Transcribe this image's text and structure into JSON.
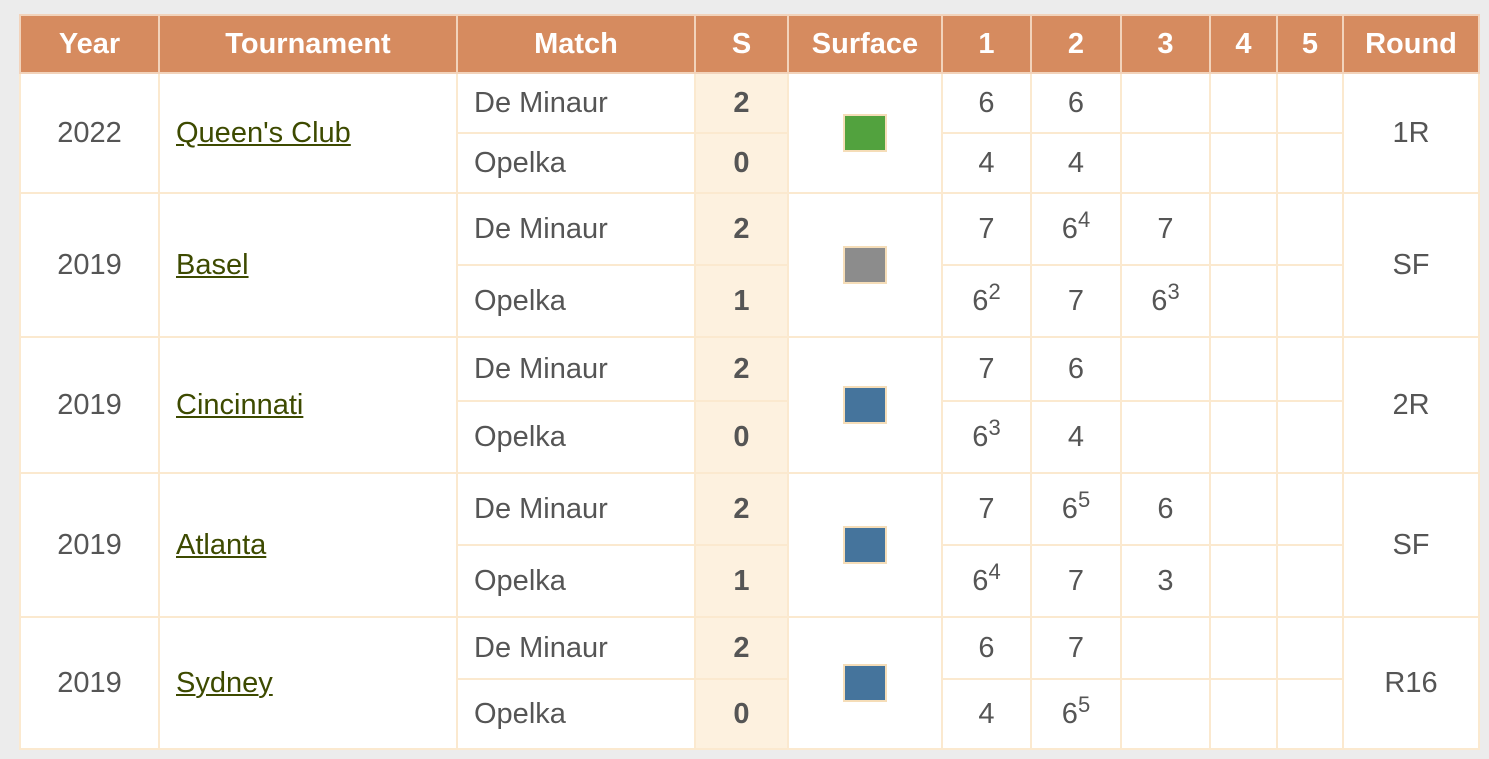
{
  "headers": {
    "year": "Year",
    "tournament": "Tournament",
    "match": "Match",
    "sets": "S",
    "surface": "Surface",
    "set1": "1",
    "set2": "2",
    "set3": "3",
    "set4": "4",
    "set5": "5",
    "round": "Round"
  },
  "colors": {
    "header_bg": "#d68b5f",
    "link": "#3d4a00",
    "grass": "#52a23e",
    "indoor_hard": "#8c8c8c",
    "hard": "#45749c"
  },
  "matches": [
    {
      "year": "2022",
      "tournament": "Queen's Club",
      "surface_color": "#52a23e",
      "round": "1R",
      "p1": {
        "name": "De Minaur",
        "sets": "2",
        "s1": "6",
        "s1t": "",
        "s2": "6",
        "s2t": "",
        "s3": "",
        "s3t": ""
      },
      "p2": {
        "name": "Opelka",
        "sets": "0",
        "s1": "4",
        "s1t": "",
        "s2": "4",
        "s2t": "",
        "s3": "",
        "s3t": ""
      }
    },
    {
      "year": "2019",
      "tournament": "Basel",
      "surface_color": "#8c8c8c",
      "round": "SF",
      "p1": {
        "name": "De Minaur",
        "sets": "2",
        "s1": "7",
        "s1t": "",
        "s2": "6",
        "s2t": "4",
        "s3": "7",
        "s3t": ""
      },
      "p2": {
        "name": "Opelka",
        "sets": "1",
        "s1": "6",
        "s1t": "2",
        "s2": "7",
        "s2t": "",
        "s3": "6",
        "s3t": "3"
      }
    },
    {
      "year": "2019",
      "tournament": "Cincinnati",
      "surface_color": "#45749c",
      "round": "2R",
      "p1": {
        "name": "De Minaur",
        "sets": "2",
        "s1": "7",
        "s1t": "",
        "s2": "6",
        "s2t": "",
        "s3": "",
        "s3t": ""
      },
      "p2": {
        "name": "Opelka",
        "sets": "0",
        "s1": "6",
        "s1t": "3",
        "s2": "4",
        "s2t": "",
        "s3": "",
        "s3t": ""
      }
    },
    {
      "year": "2019",
      "tournament": "Atlanta",
      "surface_color": "#45749c",
      "round": "SF",
      "p1": {
        "name": "De Minaur",
        "sets": "2",
        "s1": "7",
        "s1t": "",
        "s2": "6",
        "s2t": "5",
        "s3": "6",
        "s3t": ""
      },
      "p2": {
        "name": "Opelka",
        "sets": "1",
        "s1": "6",
        "s1t": "4",
        "s2": "7",
        "s2t": "",
        "s3": "3",
        "s3t": ""
      }
    },
    {
      "year": "2019",
      "tournament": "Sydney",
      "surface_color": "#45749c",
      "round": "R16",
      "p1": {
        "name": "De Minaur",
        "sets": "2",
        "s1": "6",
        "s1t": "",
        "s2": "7",
        "s2t": "",
        "s3": "",
        "s3t": ""
      },
      "p2": {
        "name": "Opelka",
        "sets": "0",
        "s1": "4",
        "s1t": "",
        "s2": "6",
        "s2t": "5",
        "s3": "",
        "s3t": ""
      }
    }
  ]
}
